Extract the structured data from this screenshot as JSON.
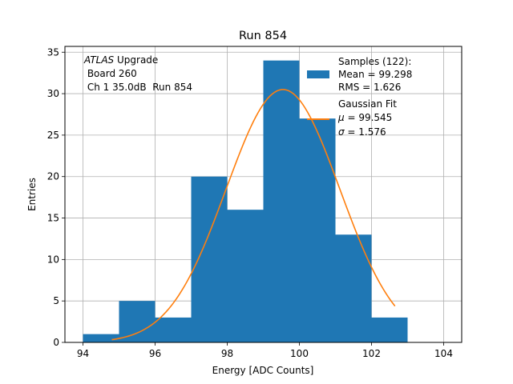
{
  "chart_data": {
    "type": "bar",
    "title": "Run 854",
    "xlabel": "Energy [ADC Counts]",
    "ylabel": "Entries",
    "xlim": [
      93.5,
      104.5
    ],
    "ylim": [
      0,
      35.7
    ],
    "grid": true,
    "xticks": [
      94,
      96,
      98,
      100,
      102,
      104
    ],
    "yticks": [
      0,
      5,
      10,
      15,
      20,
      25,
      30,
      35
    ],
    "bin_edges": [
      94,
      95,
      96,
      97,
      98,
      99,
      100,
      101,
      102,
      103
    ],
    "counts": [
      1,
      5,
      3,
      20,
      16,
      34,
      27,
      13,
      3
    ],
    "fit": {
      "name": "Gaussian Fit",
      "mu": 99.545,
      "sigma": 1.576,
      "amplitude": 30.5,
      "x_range": [
        94.8,
        102.65
      ]
    },
    "annotation": {
      "line1_italic": "ATLAS",
      "line1_rest": " Upgrade",
      "line2": " Board 260",
      "line3": " Ch 1 35.0dB  Run 854"
    },
    "legend": {
      "position": "top-right",
      "samples_label": "Samples (122):",
      "samples_mean": "Mean = 99.298",
      "samples_rms": "RMS = 1.626",
      "fit_label": "Gaussian Fit",
      "fit_mu_symbol": "μ",
      "fit_mu_value": " = 99.545",
      "fit_sigma_symbol": "σ",
      "fit_sigma_value": " = 1.576"
    },
    "colors": {
      "bars": "#1f77b4",
      "fit": "#ff7f0e",
      "grid": "#b0b0b0"
    }
  }
}
